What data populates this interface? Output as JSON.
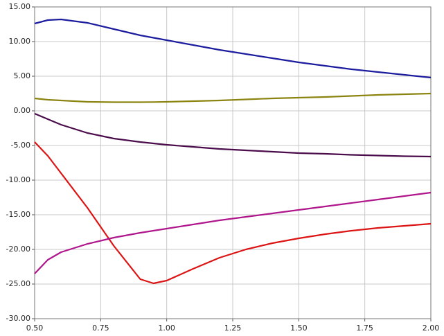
{
  "chart_data": {
    "type": "line",
    "x": [
      0.5,
      0.55,
      0.6,
      0.7,
      0.8,
      0.9,
      0.95,
      1.0,
      1.1,
      1.2,
      1.3,
      1.4,
      1.5,
      1.6,
      1.7,
      1.8,
      1.9,
      2.0
    ],
    "series": [
      {
        "color": "#1c1c9e",
        "values": [
          12.6,
          13.1,
          13.2,
          12.7,
          11.8,
          10.9,
          10.55,
          10.2,
          9.5,
          8.8,
          8.2,
          7.6,
          7.0,
          6.5,
          6.0,
          5.6,
          5.2,
          4.8
        ]
      },
      {
        "color": "#8c8410",
        "values": [
          1.8,
          1.6,
          1.5,
          1.3,
          1.25,
          1.25,
          1.27,
          1.3,
          1.4,
          1.5,
          1.65,
          1.8,
          1.9,
          2.0,
          2.15,
          2.3,
          2.4,
          2.5
        ]
      },
      {
        "color": "#4a0c4a",
        "values": [
          -0.4,
          -1.2,
          -2.0,
          -3.2,
          -4.0,
          -4.5,
          -4.7,
          -4.9,
          -5.2,
          -5.5,
          -5.7,
          -5.9,
          -6.1,
          -6.2,
          -6.35,
          -6.45,
          -6.55,
          -6.6
        ]
      },
      {
        "color": "#dc1414",
        "values": [
          -4.5,
          -6.5,
          -9.0,
          -14.0,
          -19.5,
          -24.3,
          -24.9,
          -24.5,
          -22.8,
          -21.2,
          -20.0,
          -19.1,
          -18.4,
          -17.8,
          -17.3,
          -16.9,
          -16.6,
          -16.3
        ]
      },
      {
        "color": "#b0168c",
        "values": [
          -23.5,
          -21.5,
          -20.4,
          -19.2,
          -18.3,
          -17.6,
          -17.3,
          -17.0,
          -16.4,
          -15.8,
          -15.3,
          -14.8,
          -14.3,
          -13.8,
          -13.3,
          -12.8,
          -12.3,
          -11.8
        ]
      }
    ],
    "xlim": [
      0.5,
      2.0
    ],
    "xticks": [
      {
        "value": 0.5,
        "label": "0.50"
      },
      {
        "value": 0.75,
        "label": "0.75"
      },
      {
        "value": 1.0,
        "label": "1.00"
      },
      {
        "value": 1.25,
        "label": "1.25"
      },
      {
        "value": 1.5,
        "label": "1.50"
      },
      {
        "value": 1.75,
        "label": "1.75"
      },
      {
        "value": 2.0,
        "label": "2.00"
      }
    ],
    "ylim": [
      -30,
      15
    ],
    "yticks": [
      {
        "value": -30,
        "label": "-30.00"
      },
      {
        "value": -25,
        "label": "-25.00"
      },
      {
        "value": -20,
        "label": "-20.00"
      },
      {
        "value": -15,
        "label": "-15.00"
      },
      {
        "value": -10,
        "label": "-10.00"
      },
      {
        "value": -5,
        "label": "-5.00"
      },
      {
        "value": 0,
        "label": "0.00"
      },
      {
        "value": 5,
        "label": "5.00"
      },
      {
        "value": 10,
        "label": "10.00"
      },
      {
        "value": 15,
        "label": "15.00"
      }
    ],
    "grid": true
  }
}
